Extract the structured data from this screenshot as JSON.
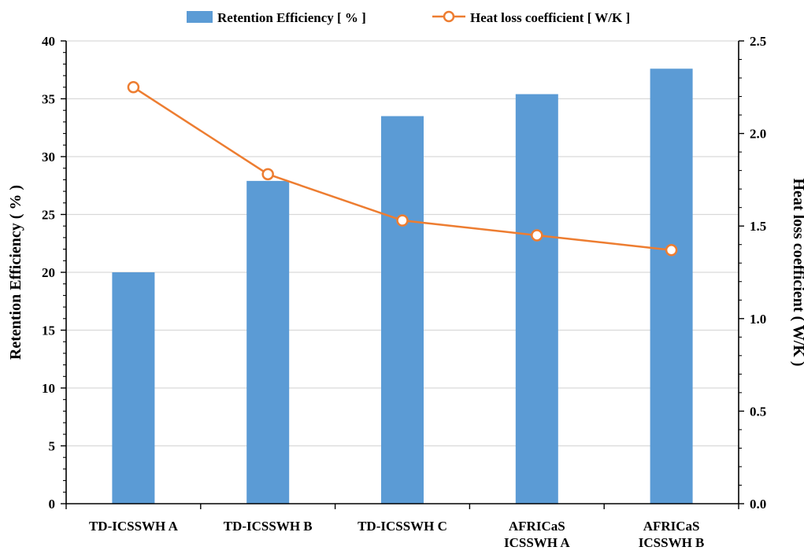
{
  "chart_data": {
    "type": "bar",
    "categories": [
      [
        "TD-ICSSWH A"
      ],
      [
        "TD-ICSSWH B"
      ],
      [
        "TD-ICSSWH C"
      ],
      [
        "AFRICaS",
        "ICSSWH A"
      ],
      [
        "AFRICaS",
        "ICSSWH B"
      ]
    ],
    "series": [
      {
        "name": "Retention Efficiency [ % ]",
        "kind": "bar",
        "axis": "left",
        "color": "#5b9bd5",
        "values": [
          20.0,
          27.9,
          33.5,
          35.4,
          37.6
        ]
      },
      {
        "name": "Heat loss coefficient [ W/K ]",
        "kind": "line",
        "axis": "right",
        "color": "#ed7d31",
        "marker": "open-circle",
        "values": [
          2.25,
          1.78,
          1.53,
          1.45,
          1.37
        ]
      }
    ],
    "ylabel": "Retention Efficiency ( % )",
    "y2label": "Heat loss coefficient ( W/K )",
    "ylim": [
      0,
      40
    ],
    "yticks": [
      "0",
      "5",
      "10",
      "15",
      "20",
      "25",
      "30",
      "35",
      "40"
    ],
    "y2lim": [
      0,
      2.5
    ],
    "y2ticks": [
      "0.0",
      "0.5",
      "1.0",
      "1.5",
      "2.0",
      "2.5"
    ],
    "grid": true,
    "legend_position": "top"
  }
}
